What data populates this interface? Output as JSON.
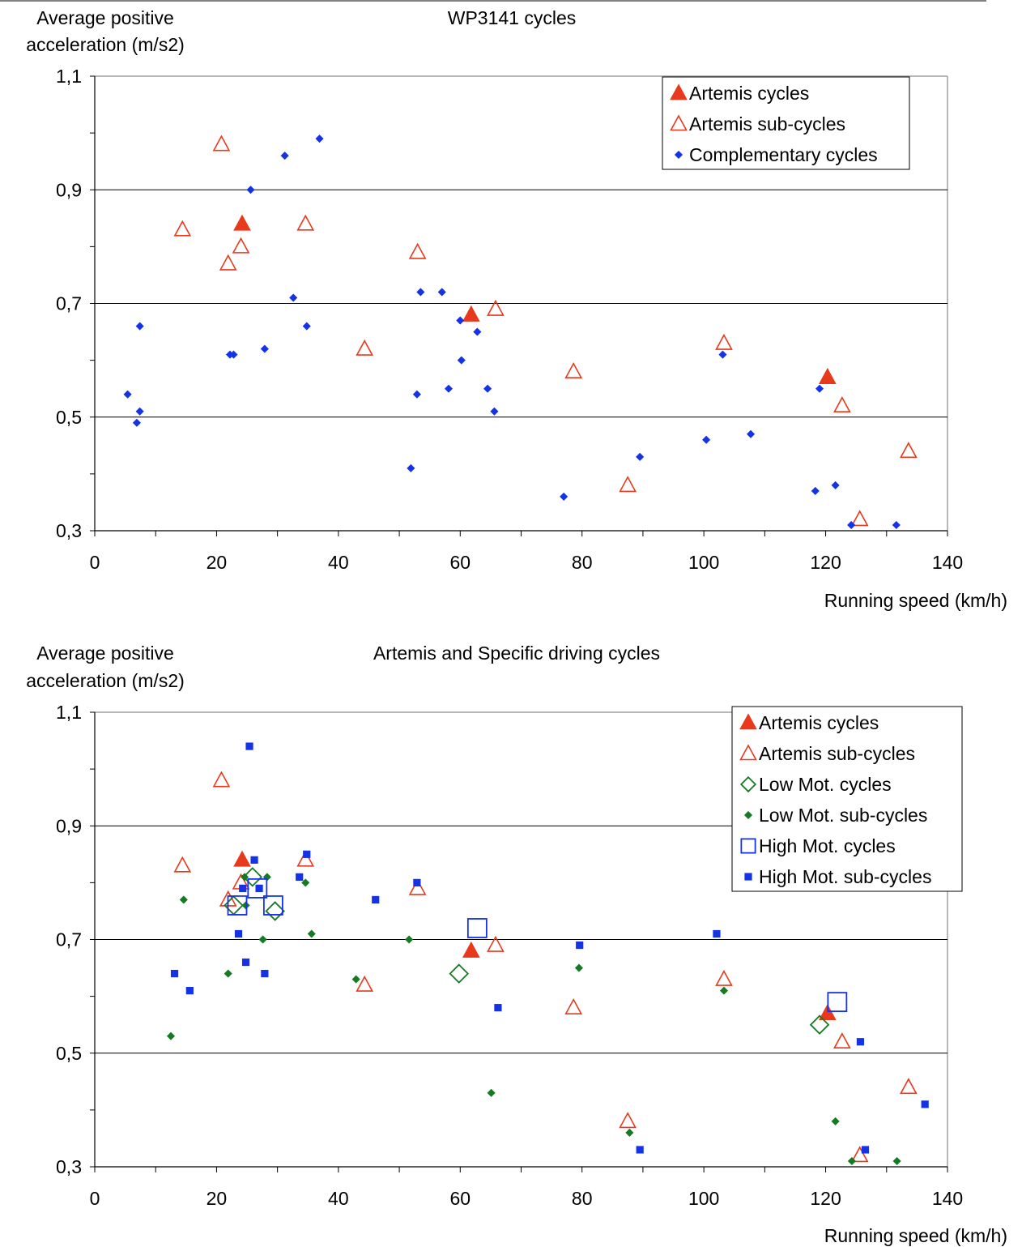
{
  "charts": [
    {
      "title": "WP3141 cycles",
      "ylabel_line1": "Average positive",
      "ylabel_line2": "acceleration (m/s2)",
      "xlabel": "Running speed (km/h)"
    },
    {
      "title": "Artemis and Specific driving cycles",
      "ylabel_line1": "Average positive",
      "ylabel_line2": "acceleration (m/s2)",
      "xlabel": "Running speed (km/h)"
    }
  ],
  "colors": {
    "red": "#e8391c",
    "blue": "#1433e6",
    "green": "#167a24",
    "grid": "#000000",
    "frame": "#a0a0a0"
  },
  "chart_data": [
    {
      "type": "scatter",
      "title": "WP3141 cycles",
      "xlabel": "Running speed (km/h)",
      "ylabel": "Average positive acceleration (m/s2)",
      "xlim": [
        0,
        140
      ],
      "ylim": [
        0.3,
        1.1
      ],
      "xticks": [
        "0",
        "20",
        "40",
        "60",
        "80",
        "100",
        "120",
        "140"
      ],
      "yticks": [
        "0,3",
        "0,5",
        "0,7",
        "0,9",
        "1,1"
      ],
      "grid": "horizontal major lines",
      "legend_position": "top-right",
      "series": [
        {
          "name": "Artemis cycles",
          "marker": "triangle-filled",
          "color": "red",
          "points": [
            [
              24.2,
              0.84
            ],
            [
              61.8,
              0.68
            ],
            [
              120.3,
              0.57
            ]
          ]
        },
        {
          "name": "Artemis sub-cycles",
          "marker": "triangle-open",
          "color": "red",
          "points": [
            [
              20.8,
              0.98
            ],
            [
              14.4,
              0.83
            ],
            [
              24,
              0.8
            ],
            [
              21.9,
              0.77
            ],
            [
              34.6,
              0.84
            ],
            [
              44.3,
              0.62
            ],
            [
              53,
              0.79
            ],
            [
              65.8,
              0.69
            ],
            [
              78.6,
              0.58
            ],
            [
              87.5,
              0.38
            ],
            [
              103.3,
              0.63
            ],
            [
              122.7,
              0.52
            ],
            [
              125.6,
              0.32
            ],
            [
              133.6,
              0.44
            ]
          ]
        },
        {
          "name": "Complementary cycles",
          "marker": "diamond-filled",
          "color": "blue",
          "points": [
            [
              36.9,
              0.99
            ],
            [
              31.2,
              0.96
            ],
            [
              25.6,
              0.9
            ],
            [
              32.6,
              0.71
            ],
            [
              53.5,
              0.72
            ],
            [
              57,
              0.72
            ],
            [
              7.4,
              0.66
            ],
            [
              34.8,
              0.66
            ],
            [
              60,
              0.67
            ],
            [
              62.8,
              0.65
            ],
            [
              22.2,
              0.61
            ],
            [
              22.8,
              0.61
            ],
            [
              27.9,
              0.62
            ],
            [
              60.2,
              0.6
            ],
            [
              103.1,
              0.61
            ],
            [
              5.4,
              0.54
            ],
            [
              7.4,
              0.51
            ],
            [
              6.9,
              0.49
            ],
            [
              52.9,
              0.54
            ],
            [
              58.1,
              0.55
            ],
            [
              64.5,
              0.55
            ],
            [
              65.6,
              0.51
            ],
            [
              119,
              0.55
            ],
            [
              51.9,
              0.41
            ],
            [
              77,
              0.36
            ],
            [
              89.5,
              0.43
            ],
            [
              100.4,
              0.46
            ],
            [
              107.7,
              0.47
            ],
            [
              118.3,
              0.37
            ],
            [
              121.6,
              0.38
            ],
            [
              124.2,
              0.31
            ],
            [
              131.6,
              0.31
            ]
          ]
        }
      ]
    },
    {
      "type": "scatter",
      "title": "Artemis and Specific driving cycles",
      "xlabel": "Running speed (km/h)",
      "ylabel": "Average positive acceleration (m/s2)",
      "xlim": [
        0,
        140
      ],
      "ylim": [
        0.3,
        1.1
      ],
      "xticks": [
        "0",
        "20",
        "40",
        "60",
        "80",
        "100",
        "120",
        "140"
      ],
      "yticks": [
        "0,3",
        "0,5",
        "0,7",
        "0,9",
        "1,1"
      ],
      "grid": "horizontal major lines",
      "legend_position": "top-right",
      "series": [
        {
          "name": "Artemis cycles",
          "marker": "triangle-filled",
          "color": "red",
          "points": [
            [
              24.2,
              0.84
            ],
            [
              61.8,
              0.68
            ],
            [
              120.3,
              0.57
            ]
          ]
        },
        {
          "name": "Artemis sub-cycles",
          "marker": "triangle-open",
          "color": "red",
          "points": [
            [
              20.8,
              0.98
            ],
            [
              14.4,
              0.83
            ],
            [
              24,
              0.8
            ],
            [
              21.9,
              0.77
            ],
            [
              34.6,
              0.84
            ],
            [
              44.3,
              0.62
            ],
            [
              53,
              0.79
            ],
            [
              65.8,
              0.69
            ],
            [
              78.6,
              0.58
            ],
            [
              87.5,
              0.38
            ],
            [
              103.3,
              0.63
            ],
            [
              122.7,
              0.52
            ],
            [
              125.6,
              0.32
            ],
            [
              133.6,
              0.44
            ]
          ]
        },
        {
          "name": "Low Mot. cycles",
          "marker": "diamond-open",
          "color": "green",
          "points": [
            [
              22.8,
              0.76
            ],
            [
              25.9,
              0.81
            ],
            [
              29.6,
              0.75
            ],
            [
              59.8,
              0.64
            ],
            [
              119,
              0.55
            ]
          ]
        },
        {
          "name": "Low Mot. sub-cycles",
          "marker": "diamond-filled",
          "color": "green",
          "points": [
            [
              14.6,
              0.77
            ],
            [
              24.6,
              0.81
            ],
            [
              28.3,
              0.81
            ],
            [
              34.6,
              0.8
            ],
            [
              24.8,
              0.76
            ],
            [
              35.6,
              0.71
            ],
            [
              27.6,
              0.7
            ],
            [
              51.6,
              0.7
            ],
            [
              21.9,
              0.64
            ],
            [
              42.9,
              0.63
            ],
            [
              79.5,
              0.65
            ],
            [
              103.3,
              0.61
            ],
            [
              12.5,
              0.53
            ],
            [
              65.1,
              0.43
            ],
            [
              87.8,
              0.36
            ],
            [
              121.6,
              0.38
            ],
            [
              124.3,
              0.31
            ],
            [
              131.7,
              0.31
            ]
          ]
        },
        {
          "name": "High Mot. cycles",
          "marker": "square-open",
          "color": "blue",
          "points": [
            [
              23.4,
              0.76
            ],
            [
              26.7,
              0.79
            ],
            [
              29.3,
              0.76
            ],
            [
              62.8,
              0.72
            ],
            [
              121.9,
              0.59
            ]
          ]
        },
        {
          "name": "High Mot. sub-cycles",
          "marker": "square-filled",
          "color": "blue",
          "points": [
            [
              25.4,
              1.04
            ],
            [
              26.2,
              0.84
            ],
            [
              34.8,
              0.85
            ],
            [
              33.6,
              0.81
            ],
            [
              52.9,
              0.8
            ],
            [
              24.3,
              0.79
            ],
            [
              27,
              0.79
            ],
            [
              46.1,
              0.77
            ],
            [
              23.6,
              0.71
            ],
            [
              79.6,
              0.69
            ],
            [
              102.1,
              0.71
            ],
            [
              13.1,
              0.64
            ],
            [
              24.8,
              0.66
            ],
            [
              27.9,
              0.64
            ],
            [
              15.6,
              0.61
            ],
            [
              66.2,
              0.58
            ],
            [
              125.7,
              0.52
            ],
            [
              136.3,
              0.41
            ],
            [
              89.5,
              0.33
            ],
            [
              126.5,
              0.33
            ]
          ]
        }
      ]
    }
  ]
}
